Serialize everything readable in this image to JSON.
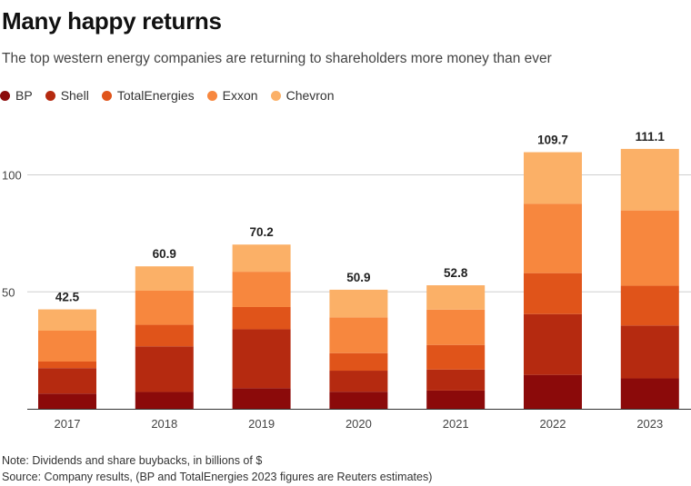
{
  "header": {
    "title": "Many happy returns",
    "subtitle": "The top western energy companies are returning to shareholders more money than ever"
  },
  "legend": [
    {
      "label": "BP",
      "color": "#8b0a0a"
    },
    {
      "label": "Shell",
      "color": "#b52a10"
    },
    {
      "label": "TotalEnergies",
      "color": "#e0541a"
    },
    {
      "label": "Exxon",
      "color": "#f7873e"
    },
    {
      "label": "Chevron",
      "color": "#fbb067"
    }
  ],
  "chart_data": {
    "type": "bar",
    "stacked": true,
    "title": "Many happy returns",
    "xlabel": "",
    "ylabel": "",
    "ylim": [
      0,
      120
    ],
    "yticks": [
      50,
      100
    ],
    "categories": [
      "2017",
      "2018",
      "2019",
      "2020",
      "2021",
      "2022",
      "2023"
    ],
    "totals": [
      "42.5",
      "60.9",
      "70.2",
      "50.9",
      "52.8",
      "109.7",
      "111.1"
    ],
    "series": [
      {
        "name": "BP",
        "color": "#8b0a0a",
        "values": [
          6.5,
          7.2,
          8.8,
          7.3,
          7.8,
          14.5,
          13.0
        ]
      },
      {
        "name": "Shell",
        "color": "#b52a10",
        "values": [
          10.9,
          19.5,
          25.2,
          9.0,
          9.0,
          26.0,
          22.6
        ]
      },
      {
        "name": "TotalEnergies",
        "color": "#e0541a",
        "values": [
          2.8,
          9.2,
          9.5,
          7.5,
          10.5,
          17.5,
          17.0
        ]
      },
      {
        "name": "Exxon",
        "color": "#f7873e",
        "values": [
          13.2,
          14.6,
          15.1,
          15.3,
          15.1,
          29.7,
          32.2
        ]
      },
      {
        "name": "Chevron",
        "color": "#fbb067",
        "values": [
          9.1,
          10.4,
          11.6,
          11.8,
          10.4,
          22.0,
          26.3
        ]
      }
    ]
  },
  "footer": {
    "note": "Note: Dividends and share buybacks, in billions of $",
    "source": "Source: Company results, (BP and TotalEnergies 2023 figures are Reuters estimates)"
  }
}
